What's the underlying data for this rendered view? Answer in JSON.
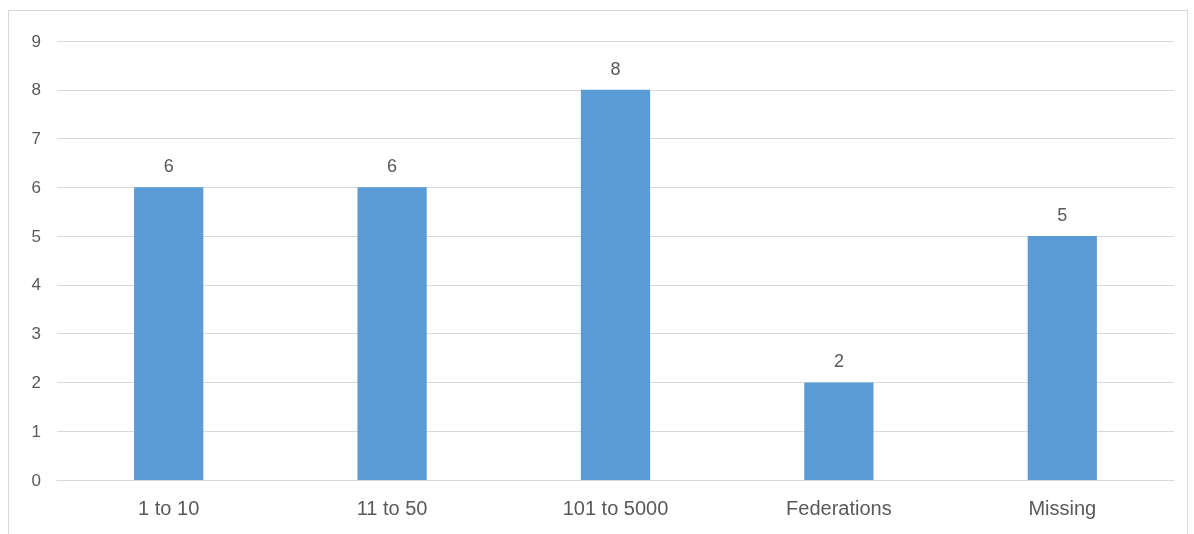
{
  "chart_data": {
    "type": "bar",
    "categories": [
      "1 to 10",
      "11 to 50",
      "101 to 5000",
      "Federations",
      "Missing"
    ],
    "values": [
      6,
      6,
      8,
      2,
      5
    ],
    "color": "#5b9bd5",
    "ylim": [
      0,
      9
    ],
    "yticks": [
      0,
      1,
      2,
      3,
      4,
      5,
      6,
      7,
      8,
      9
    ],
    "grid": "y",
    "data_labels": true
  }
}
